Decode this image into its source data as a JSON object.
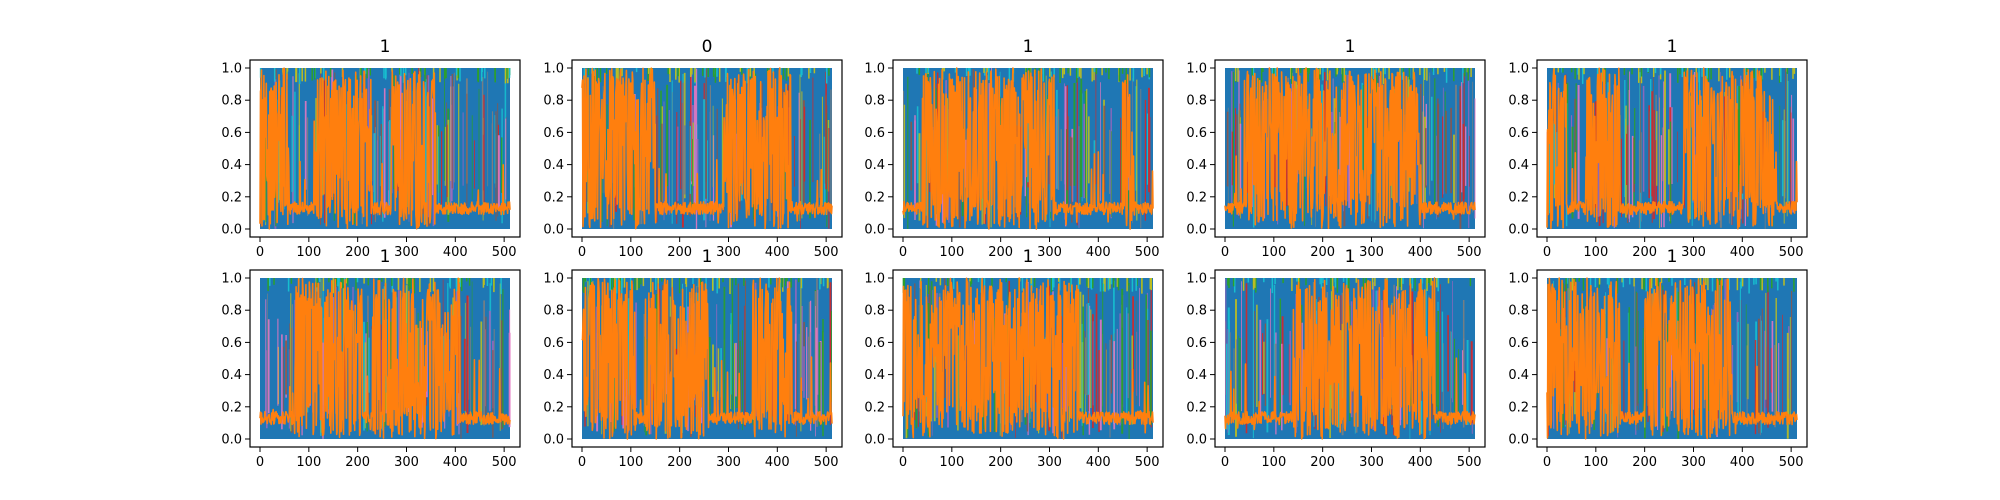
{
  "chart_data": {
    "type": "area",
    "layout": {
      "rows": 2,
      "cols": 5
    },
    "xlim": [
      0,
      512
    ],
    "ylim": [
      0,
      1
    ],
    "xticks": [
      0,
      100,
      200,
      300,
      400,
      500
    ],
    "yticks": [
      0.0,
      0.2,
      0.4,
      0.6,
      0.8,
      1.0
    ],
    "xtick_labels": [
      "0",
      "100",
      "200",
      "300",
      "400",
      "500"
    ],
    "ytick_labels": [
      "0.0",
      "0.2",
      "0.4",
      "0.6",
      "0.8",
      "1.0"
    ],
    "grid": false,
    "colors": {
      "background_series": "#1f77b4",
      "noise_series": [
        "#17becf",
        "#bcbd22",
        "#2ca02c",
        "#9467bd",
        "#e377c2",
        "#d62728",
        "#8c564b",
        "#7f7f7f"
      ],
      "main_series": "#ff7f0e"
    },
    "subplots": [
      {
        "title": "1",
        "segments": [
          {
            "x": [
              0,
              60
            ],
            "level": "high"
          },
          {
            "x": [
              60,
              110
            ],
            "level": "low"
          },
          {
            "x": [
              110,
              230
            ],
            "level": "high"
          },
          {
            "x": [
              230,
              270
            ],
            "level": "low"
          },
          {
            "x": [
              270,
              360
            ],
            "level": "high"
          },
          {
            "x": [
              360,
              512
            ],
            "level": "low"
          }
        ]
      },
      {
        "title": "0",
        "segments": [
          {
            "x": [
              0,
              150
            ],
            "level": "high"
          },
          {
            "x": [
              150,
              290
            ],
            "level": "low"
          },
          {
            "x": [
              290,
              430
            ],
            "level": "high"
          },
          {
            "x": [
              430,
              512
            ],
            "level": "low"
          }
        ]
      },
      {
        "title": "1",
        "segments": [
          {
            "x": [
              0,
              40
            ],
            "level": "low"
          },
          {
            "x": [
              40,
              310
            ],
            "level": "high"
          },
          {
            "x": [
              310,
              450
            ],
            "level": "low"
          },
          {
            "x": [
              450,
              470
            ],
            "level": "high"
          },
          {
            "x": [
              470,
              512
            ],
            "level": "low"
          }
        ]
      },
      {
        "title": "1",
        "segments": [
          {
            "x": [
              0,
              40
            ],
            "level": "low"
          },
          {
            "x": [
              40,
              400
            ],
            "level": "high"
          },
          {
            "x": [
              400,
              512
            ],
            "level": "low"
          }
        ]
      },
      {
        "title": "1",
        "segments": [
          {
            "x": [
              0,
              40
            ],
            "level": "high"
          },
          {
            "x": [
              40,
              80
            ],
            "level": "low"
          },
          {
            "x": [
              80,
              150
            ],
            "level": "high"
          },
          {
            "x": [
              150,
              280
            ],
            "level": "low"
          },
          {
            "x": [
              280,
              470
            ],
            "level": "high"
          },
          {
            "x": [
              470,
              512
            ],
            "level": "low"
          }
        ]
      },
      {
        "title": "1",
        "segments": [
          {
            "x": [
              0,
              70
            ],
            "level": "low"
          },
          {
            "x": [
              70,
              210
            ],
            "level": "high"
          },
          {
            "x": [
              210,
              230
            ],
            "level": "low"
          },
          {
            "x": [
              230,
              410
            ],
            "level": "high"
          },
          {
            "x": [
              410,
              512
            ],
            "level": "low"
          }
        ]
      },
      {
        "title": "1",
        "segments": [
          {
            "x": [
              0,
              110
            ],
            "level": "high"
          },
          {
            "x": [
              110,
              130
            ],
            "level": "low"
          },
          {
            "x": [
              130,
              260
            ],
            "level": "high"
          },
          {
            "x": [
              260,
              350
            ],
            "level": "low"
          },
          {
            "x": [
              350,
              430
            ],
            "level": "high"
          },
          {
            "x": [
              430,
              512
            ],
            "level": "low"
          }
        ]
      },
      {
        "title": "1",
        "segments": [
          {
            "x": [
              0,
              360
            ],
            "level": "high"
          },
          {
            "x": [
              360,
              512
            ],
            "level": "low"
          }
        ]
      },
      {
        "title": "1",
        "segments": [
          {
            "x": [
              0,
              30
            ],
            "level": "low"
          },
          {
            "x": [
              30,
              140
            ],
            "level": "low"
          },
          {
            "x": [
              140,
              430
            ],
            "level": "high"
          },
          {
            "x": [
              430,
              512
            ],
            "level": "low"
          }
        ]
      },
      {
        "title": "1",
        "segments": [
          {
            "x": [
              0,
              150
            ],
            "level": "high"
          },
          {
            "x": [
              150,
              200
            ],
            "level": "low"
          },
          {
            "x": [
              200,
              380
            ],
            "level": "high"
          },
          {
            "x": [
              380,
              512
            ],
            "level": "low"
          }
        ]
      }
    ]
  }
}
